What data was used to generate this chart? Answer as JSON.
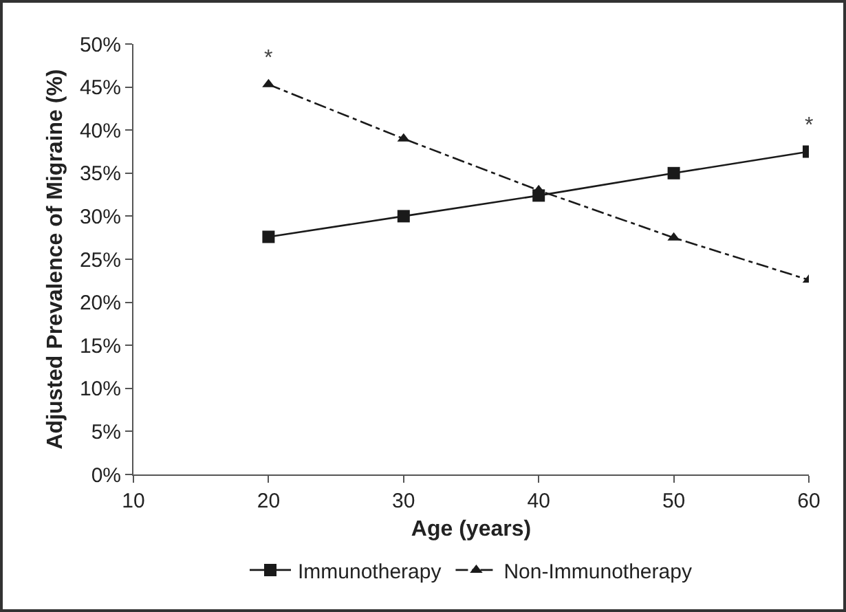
{
  "chart_data": {
    "type": "line",
    "xlabel": "Age (years)",
    "ylabel": "Adjusted Prevalence of Migraine (%)",
    "x": [
      20,
      30,
      40,
      50,
      60
    ],
    "series": [
      {
        "name": "Immunotherapy",
        "color": "#1a1a1a",
        "values": [
          27.6,
          30,
          32.4,
          35,
          37.5
        ],
        "marker": "square",
        "line_style": "solid"
      },
      {
        "name": "Non-Immunotherapy",
        "color": "#1a1a1a",
        "values": [
          45.3,
          39,
          33,
          27.5,
          22.6
        ],
        "marker": "triangle",
        "line_style": "dashed"
      }
    ],
    "xlim": [
      10,
      60
    ],
    "xticks": [
      10,
      20,
      30,
      40,
      50,
      60
    ],
    "ylim": [
      0,
      50
    ],
    "yticks": [
      {
        "value": 0,
        "label": "0%"
      },
      {
        "value": 5,
        "label": "5%"
      },
      {
        "value": 10,
        "label": "10%"
      },
      {
        "value": 15,
        "label": "15%"
      },
      {
        "value": 20,
        "label": "20%"
      },
      {
        "value": 25,
        "label": "25%"
      },
      {
        "value": 30,
        "label": "30%"
      },
      {
        "value": 35,
        "label": "35%"
      },
      {
        "value": 40,
        "label": "40%"
      },
      {
        "value": 45,
        "label": "45%"
      },
      {
        "value": 50,
        "label": "50%"
      }
    ],
    "annotations": [
      {
        "text": "*",
        "x": 20,
        "y": 45.3
      },
      {
        "text": "*",
        "x": 60,
        "y": 37.5
      }
    ],
    "grid": false,
    "legend": "bottom"
  }
}
